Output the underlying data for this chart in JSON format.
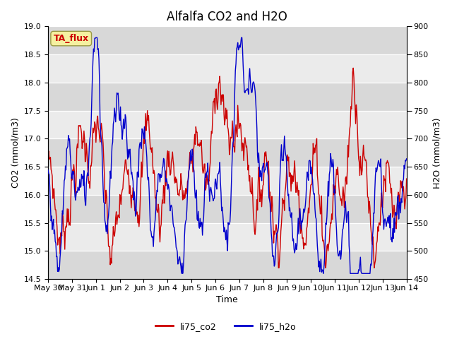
{
  "title": "Alfalfa CO2 and H2O",
  "xlabel": "Time",
  "ylabel_left": "CO2 (mmol/m3)",
  "ylabel_right": "H2O (mmol/m3)",
  "annotation_text": "TA_flux",
  "annotation_color": "#cc0000",
  "annotation_bg": "#f5f0a0",
  "annotation_border": "#999944",
  "co2_color": "#cc0000",
  "h2o_color": "#0000cc",
  "co2_label": "li75_co2",
  "h2o_label": "li75_h2o",
  "ylim_left": [
    14.5,
    19.0
  ],
  "ylim_right": [
    450,
    900
  ],
  "yticks_left": [
    14.5,
    15.0,
    15.5,
    16.0,
    16.5,
    17.0,
    17.5,
    18.0,
    18.5,
    19.0
  ],
  "yticks_right": [
    450,
    500,
    550,
    600,
    650,
    700,
    750,
    800,
    850,
    900
  ],
  "bg_color": "#ffffff",
  "plot_bg_light": "#ebebeb",
  "plot_bg_dark": "#d8d8d8",
  "grid_color": "#ffffff",
  "title_fontsize": 12,
  "label_fontsize": 9,
  "tick_fontsize": 8,
  "legend_fontsize": 9,
  "linewidth": 1.0,
  "xtick_labels": [
    "May 30",
    "May 31",
    "Jun 1",
    "Jun 2",
    "Jun 3",
    "Jun 4",
    "Jun 5",
    "Jun 6",
    "Jun 7",
    "Jun 8",
    "Jun 9",
    "Jun 10",
    "Jun 11",
    "Jun 12",
    "Jun 13",
    "Jun 14"
  ],
  "num_points": 600,
  "seed": 7
}
